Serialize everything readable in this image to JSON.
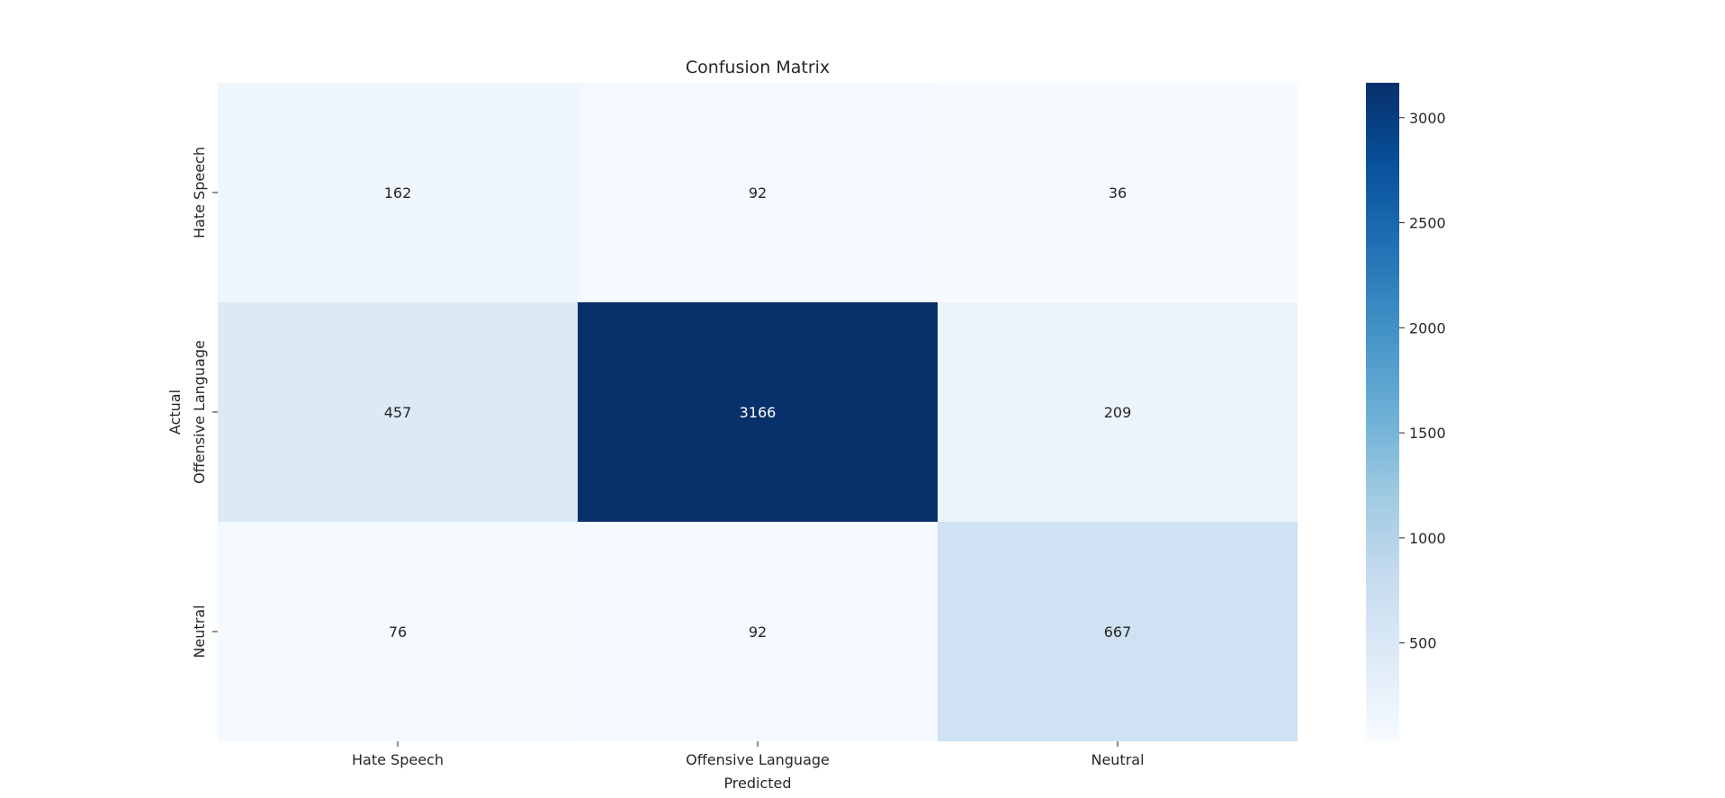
{
  "chart_data": {
    "type": "heatmap",
    "title": "Confusion Matrix",
    "xlabel": "Predicted",
    "ylabel": "Actual",
    "x_categories": [
      "Hate Speech",
      "Offensive Language",
      "Neutral"
    ],
    "y_categories": [
      "Hate Speech",
      "Offensive Language",
      "Neutral"
    ],
    "values": [
      [
        162,
        92,
        36
      ],
      [
        457,
        3166,
        209
      ],
      [
        76,
        92,
        667
      ]
    ],
    "colormap": "Blues",
    "colorbar": {
      "ticks": [
        500,
        1000,
        1500,
        2000,
        2500,
        3000
      ],
      "tick_labels": [
        "500",
        "1000",
        "1500",
        "2000",
        "2500",
        "3000"
      ],
      "range": [
        36,
        3166
      ]
    },
    "annotations": true,
    "grid": false
  }
}
